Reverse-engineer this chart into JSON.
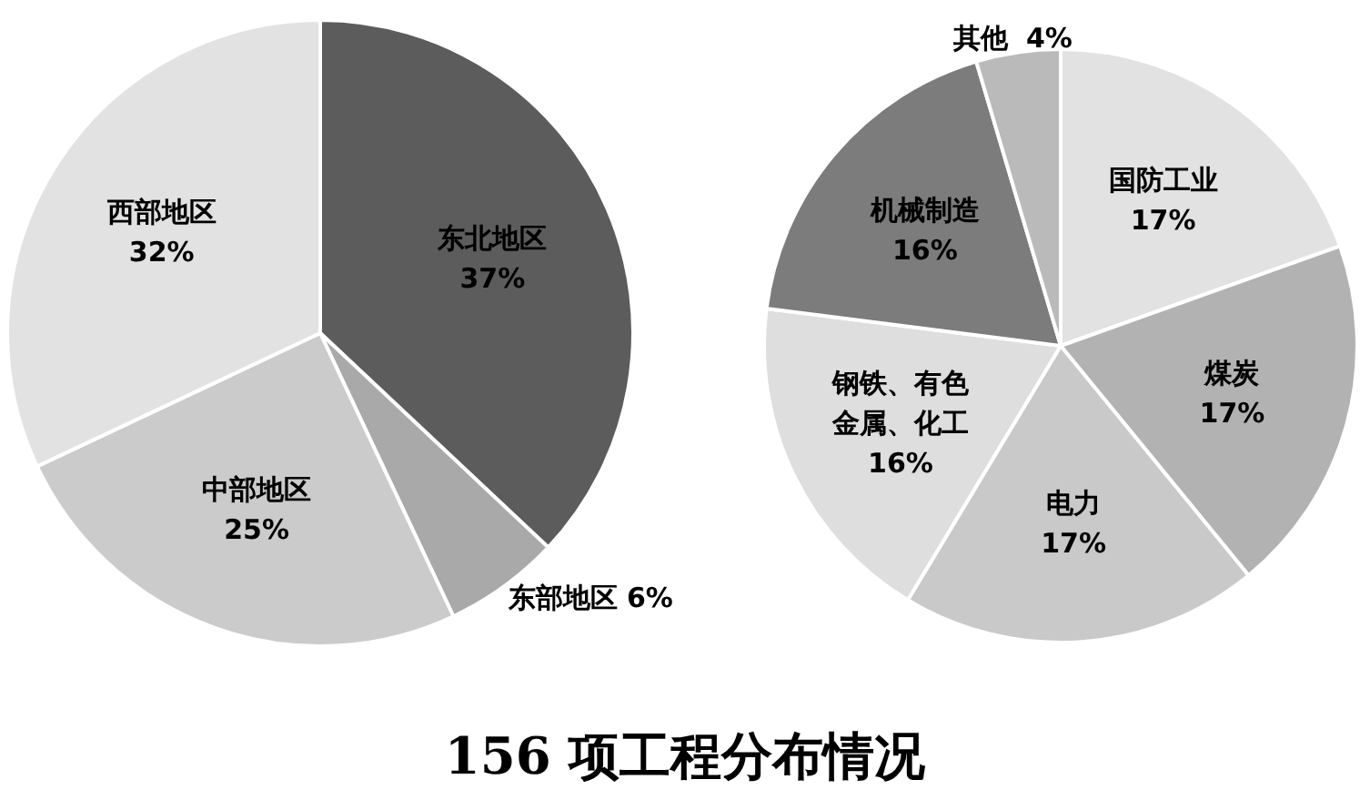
{
  "chart_data": [
    {
      "type": "pie",
      "title": "156 项工程分布情况",
      "categories": [
        "东北地区",
        "东部地区",
        "中部地区",
        "西部地区"
      ],
      "values": [
        37,
        6,
        25,
        32
      ],
      "colors": [
        "#5c5c5c",
        "#a9a9a9",
        "#cbcbcb",
        "#e2e2e2"
      ],
      "value_labels": [
        "37%",
        "6%",
        "25%",
        "32%"
      ]
    },
    {
      "type": "pie",
      "categories": [
        "国防工业",
        "煤炭",
        "电力",
        "钢铁、有色金属、化工",
        "机械制造",
        "其他"
      ],
      "values": [
        17,
        17,
        17,
        16,
        16,
        4
      ],
      "colors": [
        "#e2e2e2",
        "#b2b2b2",
        "#c9c9c9",
        "#dedede",
        "#7c7c7c",
        "#bababa"
      ],
      "value_labels": [
        "17%",
        "17%",
        "17%",
        "16%",
        "16%",
        "4%"
      ]
    }
  ]
}
